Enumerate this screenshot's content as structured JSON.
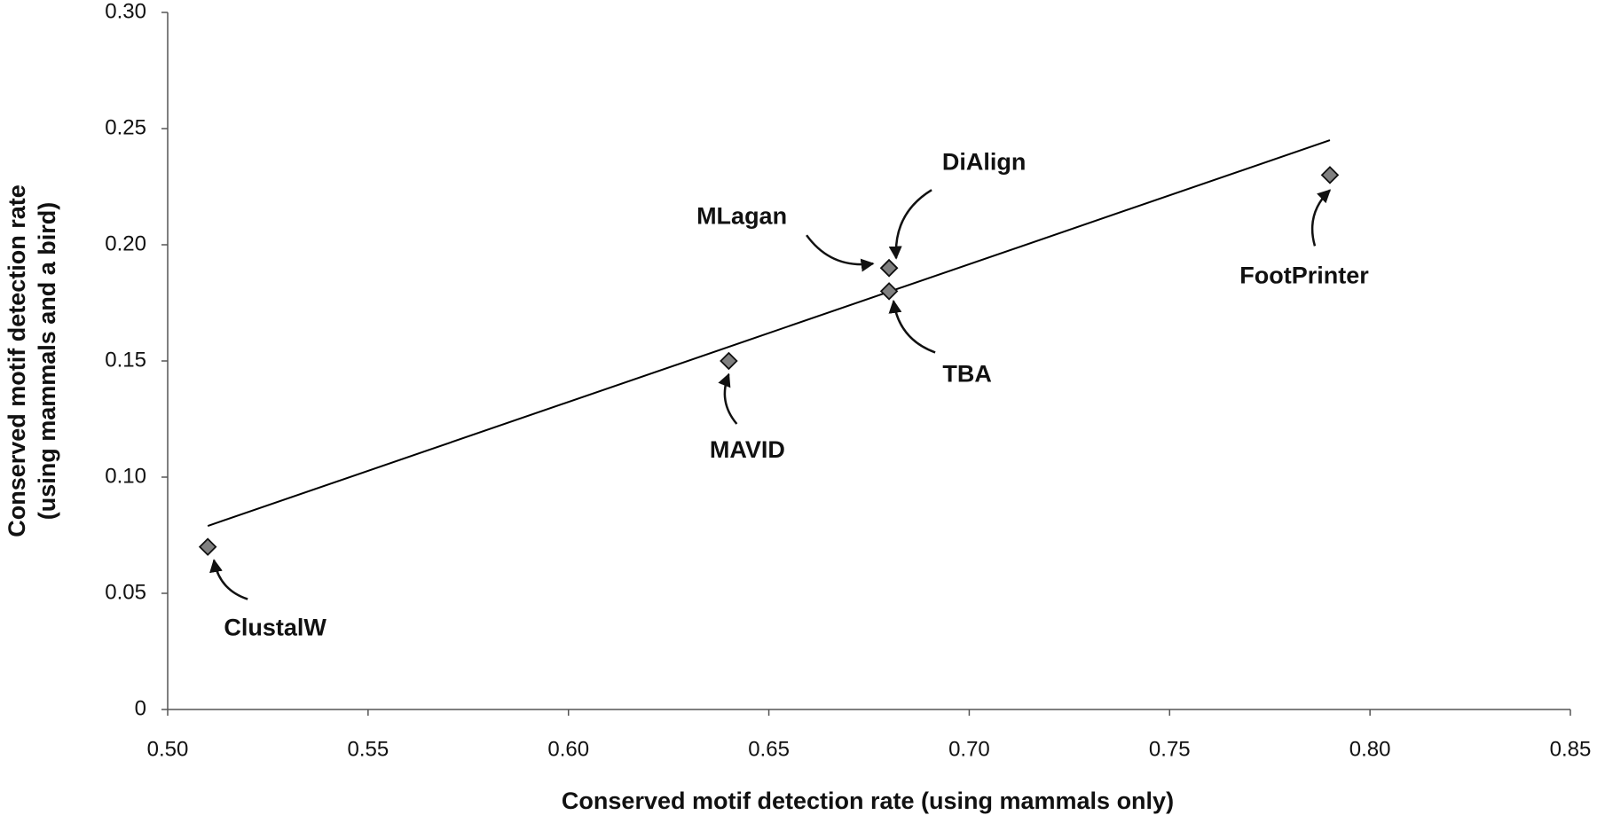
{
  "chart_data": {
    "type": "scatter",
    "xlabel": "Conserved motif detection rate (using mammals only)",
    "ylabel": [
      "Conserved motif detection rate",
      "(using mammals and a bird)"
    ],
    "xlim": [
      0.5,
      0.85
    ],
    "ylim": [
      0,
      0.3
    ],
    "xticks": [
      {
        "value": 0.5,
        "label": "0.50"
      },
      {
        "value": 0.55,
        "label": "0.55"
      },
      {
        "value": 0.6,
        "label": "0.60"
      },
      {
        "value": 0.65,
        "label": "0.65"
      },
      {
        "value": 0.7,
        "label": "0.70"
      },
      {
        "value": 0.75,
        "label": "0.75"
      },
      {
        "value": 0.8,
        "label": "0.80"
      },
      {
        "value": 0.85,
        "label": "0.85"
      }
    ],
    "yticks": [
      0,
      {
        "value": 0.05,
        "label": "0.05"
      },
      {
        "value": 0.1,
        "label": "0.10"
      },
      {
        "value": 0.15,
        "label": "0.15"
      },
      {
        "value": 0.2,
        "label": "0.20"
      },
      {
        "value": 0.25,
        "label": "0.25"
      },
      {
        "value": 0.3,
        "label": "0.30"
      }
    ],
    "points": {
      "color": "#808080",
      "labels": [
        "ClustalW",
        "MAVID",
        "MLagan",
        "DiAlign",
        "TBA",
        "FootPrinter"
      ],
      "x": [
        0.51,
        0.64,
        0.68,
        0.68,
        0.68,
        0.79
      ],
      "y": [
        0.07,
        0.15,
        0.19,
        0.19,
        0.18,
        0.23
      ]
    },
    "trendline": {
      "color": "#000000",
      "x": [
        0.51,
        0.79
      ],
      "y": [
        0.079,
        0.245
      ]
    }
  }
}
